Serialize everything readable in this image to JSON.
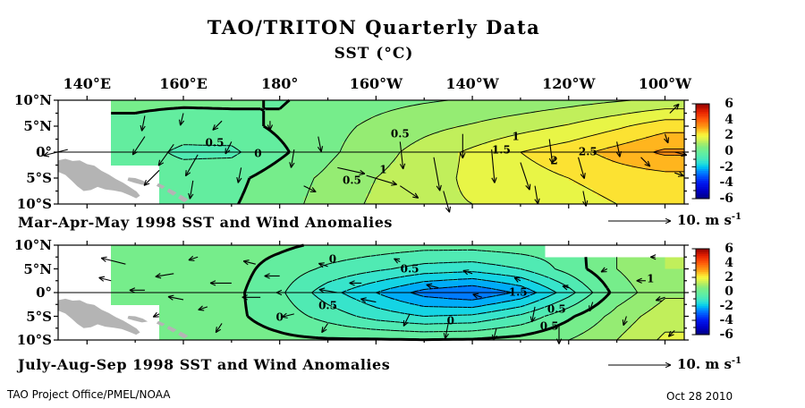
{
  "title": "TAO/TRITON Quarterly Data",
  "subtitle": "SST (°C)",
  "footer": {
    "credit": "TAO Project Office/PMEL/NOAA",
    "date": "Oct 28 2010"
  },
  "chart_data": {
    "type": "heatmap",
    "contour_interval_degC": 0.5,
    "color_scale": {
      "min": -6,
      "max": 6,
      "tick_labels": [
        "6",
        "4",
        "2",
        "0",
        "-2",
        "-4",
        "-6"
      ],
      "tick_values": [
        6,
        4,
        2,
        0,
        -2,
        -4,
        -6
      ],
      "palette_anchors": [
        [
          -6,
          "#000080"
        ],
        [
          -5,
          "#0000C8"
        ],
        [
          -4,
          "#0018F0"
        ],
        [
          -3,
          "#0064FF"
        ],
        [
          -2.5,
          "#0090FF"
        ],
        [
          -2,
          "#00C8F0"
        ],
        [
          -1.5,
          "#28E0D8"
        ],
        [
          -1,
          "#46E8BE"
        ],
        [
          -0.5,
          "#5AECA8"
        ],
        [
          0,
          "#6CEE96"
        ],
        [
          0.5,
          "#80EC80"
        ],
        [
          1,
          "#AAEC66"
        ],
        [
          1.5,
          "#D8F250"
        ],
        [
          2,
          "#F8F83C"
        ],
        [
          2.5,
          "#FFCC28"
        ],
        [
          3,
          "#FF9E14"
        ],
        [
          4,
          "#FF5A0A"
        ],
        [
          5,
          "#E62000"
        ],
        [
          6,
          "#8C0000"
        ]
      ]
    },
    "lon_axis": {
      "tick_labels": [
        "140°E",
        "160°E",
        "180°",
        "160°W",
        "140°W",
        "120°W",
        "100°W"
      ],
      "tick_lons": [
        140,
        160,
        180,
        200,
        220,
        240,
        260
      ]
    },
    "lat_axis": {
      "tick_labels": [
        "10°N",
        "5°N",
        "0°",
        "5°S",
        "10°S"
      ],
      "tick_lats": [
        10,
        5,
        0,
        -5,
        -10
      ]
    },
    "grid": {
      "lons": [
        140,
        150,
        160,
        170,
        180,
        190,
        200,
        210,
        220,
        230,
        240,
        250,
        260
      ],
      "lats": [
        10,
        5,
        0,
        -5,
        -10
      ]
    },
    "wind_scale": {
      "value": "10.",
      "unit": "m s",
      "exp": "-1",
      "meters_per_second": 10
    },
    "panels": [
      {
        "caption": "Mar-Apr-May 1998 SST and Wind Anomalies",
        "sst_anomaly_degC": [
          [
            null,
            0.1,
            0.1,
            0.1,
            -0.05,
            0.2,
            0.35,
            0.45,
            0.55,
            0.65,
            0.8,
            0.95,
            1.1
          ],
          [
            null,
            -0.1,
            -0.25,
            -0.2,
            0.1,
            0.35,
            0.6,
            0.85,
            1.05,
            1.3,
            1.55,
            1.9,
            2.3
          ],
          [
            null,
            -0.3,
            -0.6,
            -0.6,
            -0.1,
            0.4,
            0.8,
            1.2,
            1.6,
            2.0,
            2.3,
            2.7,
            3.1
          ],
          [
            null,
            null,
            -0.25,
            -0.15,
            0.25,
            0.6,
            1.0,
            1.3,
            1.6,
            1.8,
            2.0,
            2.2,
            2.3
          ],
          [
            null,
            null,
            -0.1,
            -0.05,
            0.3,
            0.7,
            1.1,
            1.4,
            1.5,
            1.6,
            1.8,
            2.0,
            2.1
          ]
        ],
        "contour_labels": [
          {
            "text": "0.5",
            "lon": 166.5,
            "lat": 1.8
          },
          {
            "text": "0",
            "lon": 175.5,
            "lat": -0.4
          },
          {
            "text": "0.5",
            "lon": 205,
            "lat": 3.5
          },
          {
            "text": "0.5",
            "lon": 195,
            "lat": -5.6
          },
          {
            "text": "1",
            "lon": 201.5,
            "lat": -3.5
          },
          {
            "text": "1",
            "lon": 229,
            "lat": 2.9
          },
          {
            "text": "1.5",
            "lon": 226,
            "lat": 0.3
          },
          {
            "text": "2",
            "lon": 237,
            "lat": -1.7
          },
          {
            "text": "2.5",
            "lon": 244,
            "lat": 0
          }
        ],
        "wind_vectors_ms": [
          [
            136,
            0.5,
            -4,
            -1
          ],
          [
            152,
            7,
            -0.5,
            -2.5
          ],
          [
            160,
            7.5,
            -0.5,
            -2
          ],
          [
            168,
            6,
            -1.5,
            -1.5
          ],
          [
            178,
            6,
            0,
            -1.5
          ],
          [
            152,
            3,
            -2,
            -3
          ],
          [
            158,
            1.5,
            -2.5,
            -3.5
          ],
          [
            163,
            -0.5,
            -2,
            -3.5
          ],
          [
            155,
            -3.5,
            -2.5,
            -2.5
          ],
          [
            162,
            -5.5,
            -0.5,
            -3
          ],
          [
            170,
            2,
            -1,
            -2
          ],
          [
            172,
            -3,
            -0.5,
            -2.5
          ],
          [
            183,
            0.5,
            -0.5,
            -3
          ],
          [
            188,
            3,
            0.5,
            -2.5
          ],
          [
            192,
            -3,
            4.5,
            -1
          ],
          [
            198,
            -4.5,
            5,
            -1.5
          ],
          [
            205,
            -6.5,
            3,
            -2
          ],
          [
            185,
            -6.5,
            2,
            -1
          ],
          [
            205,
            2,
            0.5,
            -4.5
          ],
          [
            212,
            -1,
            1,
            -5.5
          ],
          [
            218,
            3.5,
            0,
            -4
          ],
          [
            224,
            0.5,
            0.5,
            -5.5
          ],
          [
            230,
            -2,
            1.5,
            -4.5
          ],
          [
            236,
            2.5,
            0.5,
            -4
          ],
          [
            242,
            -1,
            1,
            -3.5
          ],
          [
            233,
            -6.5,
            0.5,
            -3
          ],
          [
            243,
            -7.5,
            0.5,
            -2.5
          ],
          [
            214,
            -7.5,
            1,
            -3.5
          ],
          [
            250,
            2,
            0.5,
            -2.5
          ],
          [
            255,
            -1,
            1.5,
            -1.5
          ],
          [
            260,
            3.5,
            0.5,
            -1.5
          ],
          [
            262,
            0,
            2,
            -0.5
          ],
          [
            262,
            -4,
            1.5,
            -0.5
          ],
          [
            261,
            7.5,
            1.5,
            1.5
          ]
        ]
      },
      {
        "caption": "July-Aug-Sep 1998 SST and Wind Anomalies",
        "sst_anomaly_degC": [
          [
            null,
            0.3,
            0.3,
            0.2,
            0.1,
            -0.1,
            -0.2,
            -0.3,
            -0.3,
            -0.2,
            null,
            null,
            null
          ],
          [
            null,
            0.5,
            0.4,
            0.2,
            -0.2,
            -0.6,
            -0.9,
            -1.2,
            -1.3,
            -1.0,
            -0.3,
            0.5,
            1.0
          ],
          [
            null,
            0.3,
            0.25,
            0.15,
            -0.4,
            -1.3,
            -2.0,
            -2.7,
            -3.0,
            -2.4,
            -1.2,
            0.2,
            0.9
          ],
          [
            null,
            null,
            0.2,
            0.1,
            -0.2,
            -0.7,
            -1.2,
            -1.5,
            -1.4,
            -0.9,
            -0.1,
            0.7,
            1.3
          ],
          [
            null,
            null,
            0.3,
            0.2,
            0.1,
            0.05,
            0.05,
            0.02,
            0.05,
            0.2,
            0.5,
            1.0,
            1.6
          ]
        ],
        "contour_labels": [
          {
            "text": "0",
            "lon": 191,
            "lat": 7
          },
          {
            "text": "0.5",
            "lon": 207,
            "lat": 5
          },
          {
            "text": "0.5",
            "lon": 190,
            "lat": -2.9
          },
          {
            "text": "0",
            "lon": 180,
            "lat": -5.3
          },
          {
            "text": "1.5",
            "lon": 229.5,
            "lat": 0
          },
          {
            "text": "0.5",
            "lon": 237.5,
            "lat": -3.6
          },
          {
            "text": "0.5",
            "lon": 236,
            "lat": -7.2
          },
          {
            "text": "0",
            "lon": 215.5,
            "lat": -6
          },
          {
            "text": "1",
            "lon": 257,
            "lat": 2.9
          }
        ],
        "wind_vectors_ms": [
          [
            148,
            6,
            -4,
            1
          ],
          [
            145,
            2.5,
            -2,
            0.5
          ],
          [
            152,
            0.5,
            -2.5,
            0
          ],
          [
            158,
            4,
            -3,
            -0.5
          ],
          [
            163,
            7.5,
            -1.5,
            -0.5
          ],
          [
            160,
            -1.5,
            -2.5,
            0.5
          ],
          [
            155,
            -4.5,
            -1,
            -0.5
          ],
          [
            165,
            -3,
            -1.5,
            -0.5
          ],
          [
            168,
            -6.5,
            -1,
            -1.5
          ],
          [
            170,
            2,
            -3.5,
            0
          ],
          [
            175,
            6,
            -2,
            0.5
          ],
          [
            176,
            -1,
            -3,
            0
          ],
          [
            180,
            3.5,
            -2.5,
            0
          ],
          [
            185,
            0,
            -4.5,
            0
          ],
          [
            183,
            -4.5,
            -2,
            -0.5
          ],
          [
            190,
            5.5,
            -1.5,
            0.5
          ],
          [
            192,
            0,
            -3,
            0.5
          ],
          [
            190,
            -6.5,
            -1,
            -1.5
          ],
          [
            197,
            2,
            -2,
            0
          ],
          [
            200,
            -2,
            -2.5,
            0.5
          ],
          [
            205,
            6.5,
            -1,
            0.5
          ],
          [
            207,
            -4.5,
            -1,
            -2
          ],
          [
            213,
            1,
            -2,
            0.5
          ],
          [
            215,
            -6.5,
            -0.5,
            -2.5
          ],
          [
            220,
            4,
            -1.5,
            0.5
          ],
          [
            222,
            -1,
            -1.5,
            0.5
          ],
          [
            225,
            -7.5,
            -0.5,
            -2
          ],
          [
            230,
            2.5,
            -1,
            0.5
          ],
          [
            233,
            -3,
            -0.5,
            -2.5
          ],
          [
            238,
            -7,
            0,
            -3
          ],
          [
            240,
            1,
            -1,
            0.3
          ],
          [
            245,
            -2,
            -0.5,
            -1.5
          ],
          [
            248,
            5,
            -1,
            -0.5
          ],
          [
            252,
            -5,
            -0.5,
            -1.5
          ],
          [
            256,
            2.5,
            -1.5,
            0
          ],
          [
            260,
            -1,
            -1.5,
            -0.5
          ],
          [
            262,
            -8,
            -1,
            -1
          ],
          [
            258,
            7.5,
            -0.8,
            0
          ]
        ]
      }
    ]
  }
}
